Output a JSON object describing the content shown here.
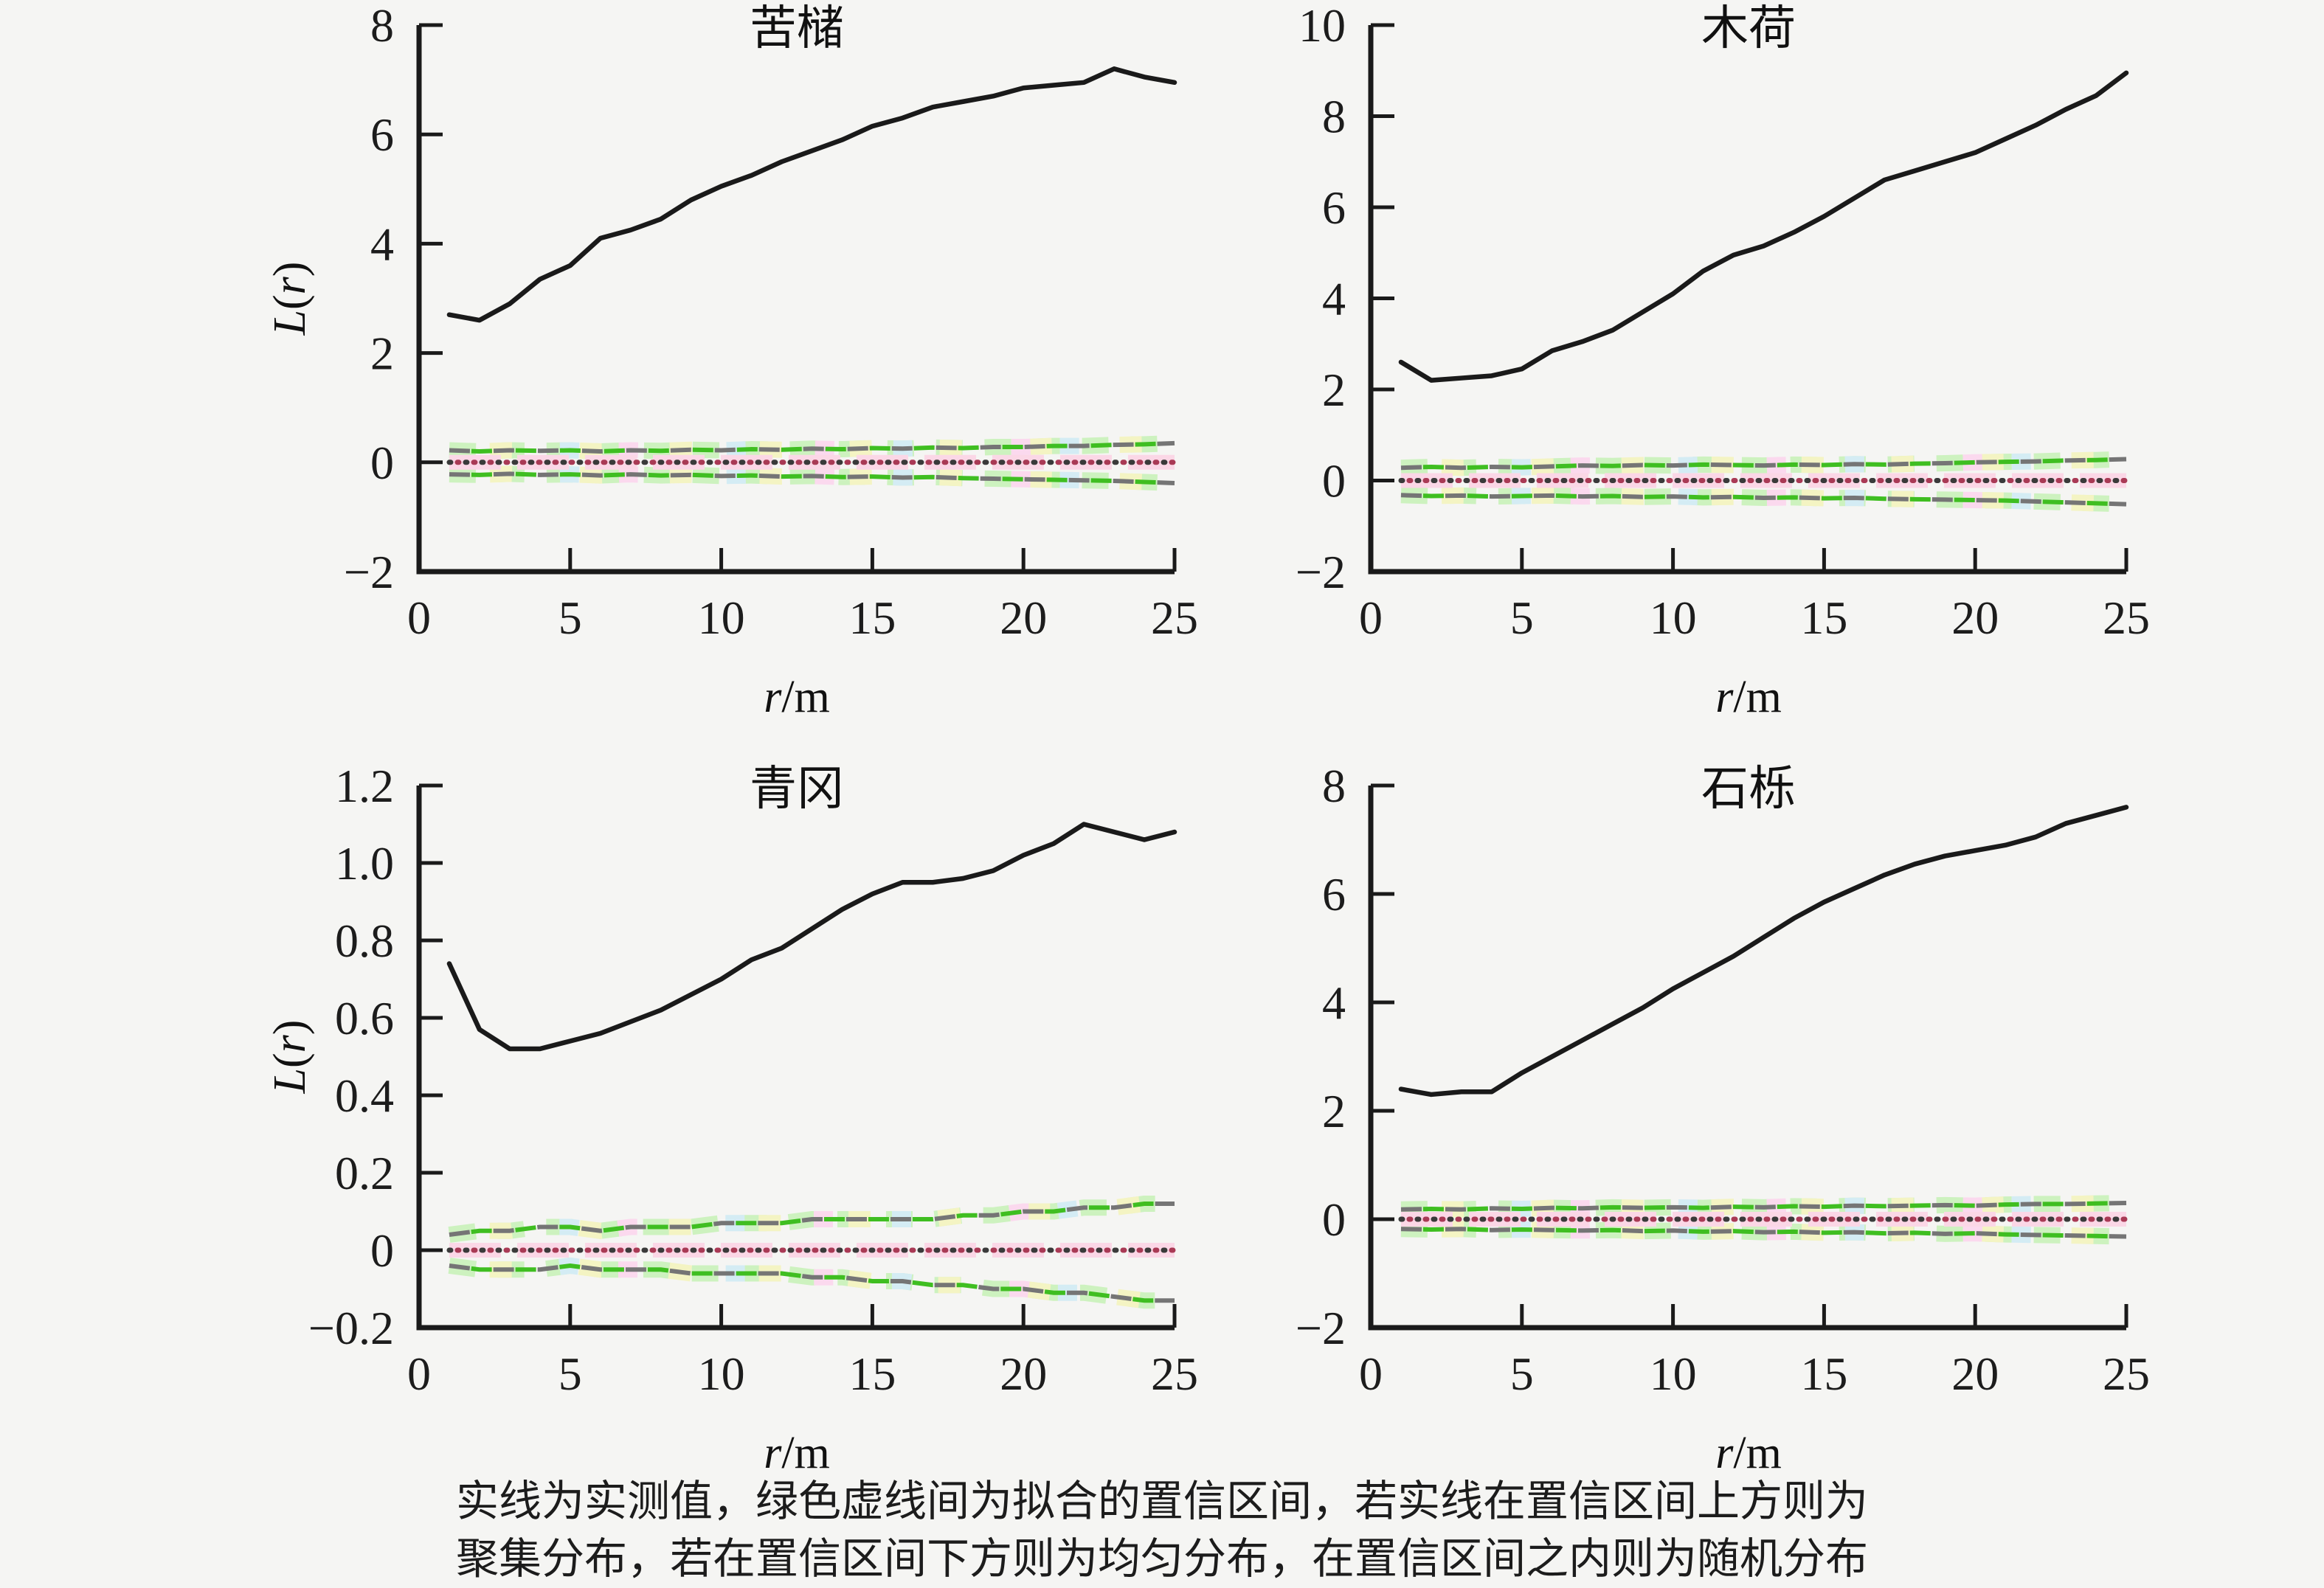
{
  "figure": {
    "caption": {
      "line1": "实线为实测值，绿色虚线间为拟合的置信区间，若实线在置信区间上方则为",
      "line2": "聚集分布，若在置信区间下方则为均匀分布，在置信区间之内则为随机分布"
    }
  },
  "colors": {
    "background": "#f5f5f3",
    "axis": "#1a1a1a",
    "observed_line": "#1a1a1a",
    "envelope_dash_green": "#3fbe21",
    "envelope_dash_gray": "#757575",
    "halo_green": "#cdf2bf",
    "halo_yellow": "#f4f4c3",
    "halo_pink": "#fbd9ee",
    "halo_blue": "#d4ecf4",
    "theoretical_dot_dark": "#3a3a3a",
    "theoretical_dot_red": "#a93a55",
    "theoretical_band_pink": "#fbd7e6",
    "text": "#1c1c1c"
  },
  "chart_data": [
    {
      "type": "line",
      "id": "kuzhu",
      "title": "苦槠",
      "xlabel_parts": [
        {
          "text": "r",
          "italic": true
        },
        {
          "text": "/m",
          "italic": false
        }
      ],
      "ylabel_parts": [
        {
          "text": "L",
          "italic": true
        },
        {
          "text": "(",
          "italic": false
        },
        {
          "text": "r",
          "italic": true
        },
        {
          "text": ")",
          "italic": false
        }
      ],
      "show_ylabel": true,
      "xlim": [
        0,
        25
      ],
      "ylim": [
        -2,
        8
      ],
      "xticks": [
        0,
        5,
        10,
        15,
        20,
        25
      ],
      "xtick_labels": [
        "0",
        "5",
        "10",
        "15",
        "20",
        "25"
      ],
      "yticks": [
        -2,
        0,
        2,
        4,
        6,
        8
      ],
      "ytick_labels": [
        "−2",
        "0",
        "2",
        "4",
        "6",
        "8"
      ],
      "x": [
        1,
        2,
        3,
        4,
        5,
        6,
        7,
        8,
        9,
        10,
        11,
        12,
        13,
        14,
        15,
        16,
        17,
        18,
        19,
        20,
        21,
        22,
        23,
        24,
        25
      ],
      "series": {
        "observed": {
          "values": [
            2.7,
            2.6,
            2.9,
            3.35,
            3.6,
            4.1,
            4.25,
            4.45,
            4.8,
            5.05,
            5.25,
            5.5,
            5.7,
            5.9,
            6.15,
            6.3,
            6.5,
            6.6,
            6.7,
            6.85,
            6.9,
            6.95,
            7.2,
            7.05,
            6.95
          ]
        },
        "envelope_upper": {
          "values": [
            0.22,
            0.2,
            0.22,
            0.21,
            0.22,
            0.2,
            0.22,
            0.21,
            0.23,
            0.22,
            0.24,
            0.23,
            0.25,
            0.24,
            0.26,
            0.25,
            0.27,
            0.26,
            0.28,
            0.28,
            0.3,
            0.3,
            0.32,
            0.33,
            0.35
          ]
        },
        "envelope_lower": {
          "values": [
            -0.22,
            -0.23,
            -0.21,
            -0.23,
            -0.22,
            -0.24,
            -0.22,
            -0.24,
            -0.23,
            -0.25,
            -0.24,
            -0.26,
            -0.25,
            -0.27,
            -0.26,
            -0.28,
            -0.27,
            -0.29,
            -0.3,
            -0.31,
            -0.32,
            -0.33,
            -0.34,
            -0.36,
            -0.38
          ]
        },
        "theoretical": {
          "constant": 0
        }
      }
    },
    {
      "type": "line",
      "id": "muhe",
      "title": "木荷",
      "xlabel_parts": [
        {
          "text": "r",
          "italic": true
        },
        {
          "text": "/m",
          "italic": false
        }
      ],
      "ylabel_parts": [
        {
          "text": "L",
          "italic": true
        },
        {
          "text": "(",
          "italic": false
        },
        {
          "text": "r",
          "italic": true
        },
        {
          "text": ")",
          "italic": false
        }
      ],
      "show_ylabel": false,
      "xlim": [
        0,
        25
      ],
      "ylim": [
        -2,
        10
      ],
      "xticks": [
        0,
        5,
        10,
        15,
        20,
        25
      ],
      "xtick_labels": [
        "0",
        "5",
        "10",
        "15",
        "20",
        "25"
      ],
      "yticks": [
        -2,
        0,
        2,
        4,
        6,
        8,
        10
      ],
      "ytick_labels": [
        "−2",
        "0",
        "2",
        "4",
        "6",
        "8",
        "10"
      ],
      "x": [
        1,
        2,
        3,
        4,
        5,
        6,
        7,
        8,
        9,
        10,
        11,
        12,
        13,
        14,
        15,
        16,
        17,
        18,
        19,
        20,
        21,
        22,
        23,
        24,
        25
      ],
      "series": {
        "observed": {
          "values": [
            2.6,
            2.2,
            2.25,
            2.3,
            2.45,
            2.85,
            3.05,
            3.3,
            3.7,
            4.1,
            4.6,
            4.95,
            5.15,
            5.45,
            5.8,
            6.2,
            6.6,
            6.8,
            7.0,
            7.2,
            7.5,
            7.8,
            8.15,
            8.45,
            8.95
          ]
        },
        "envelope_upper": {
          "values": [
            0.28,
            0.3,
            0.28,
            0.3,
            0.29,
            0.31,
            0.33,
            0.32,
            0.34,
            0.33,
            0.35,
            0.34,
            0.33,
            0.35,
            0.34,
            0.36,
            0.35,
            0.37,
            0.38,
            0.4,
            0.41,
            0.42,
            0.44,
            0.45,
            0.47
          ]
        },
        "envelope_lower": {
          "values": [
            -0.32,
            -0.34,
            -0.33,
            -0.35,
            -0.34,
            -0.33,
            -0.35,
            -0.34,
            -0.36,
            -0.35,
            -0.37,
            -0.36,
            -0.38,
            -0.37,
            -0.39,
            -0.38,
            -0.4,
            -0.41,
            -0.42,
            -0.43,
            -0.44,
            -0.46,
            -0.48,
            -0.5,
            -0.52
          ]
        },
        "theoretical": {
          "constant": 0
        }
      }
    },
    {
      "type": "line",
      "id": "qinggang",
      "title": "青冈",
      "xlabel_parts": [
        {
          "text": "r",
          "italic": true
        },
        {
          "text": "/m",
          "italic": false
        }
      ],
      "ylabel_parts": [
        {
          "text": "L",
          "italic": true
        },
        {
          "text": "(",
          "italic": false
        },
        {
          "text": "r",
          "italic": true
        },
        {
          "text": ")",
          "italic": false
        }
      ],
      "show_ylabel": true,
      "xlim": [
        0,
        25
      ],
      "ylim": [
        -0.2,
        1.2
      ],
      "xticks": [
        0,
        5,
        10,
        15,
        20,
        25
      ],
      "xtick_labels": [
        "0",
        "5",
        "10",
        "15",
        "20",
        "25"
      ],
      "yticks": [
        -0.2,
        0,
        0.2,
        0.4,
        0.6,
        0.8,
        1.0,
        1.2
      ],
      "ytick_labels": [
        "−0.2",
        "0",
        "0.2",
        "0.4",
        "0.6",
        "0.8",
        "1.0",
        "1.2"
      ],
      "x": [
        1,
        2,
        3,
        4,
        5,
        6,
        7,
        8,
        9,
        10,
        11,
        12,
        13,
        14,
        15,
        16,
        17,
        18,
        19,
        20,
        21,
        22,
        23,
        24,
        25
      ],
      "series": {
        "observed": {
          "values": [
            0.74,
            0.57,
            0.52,
            0.52,
            0.54,
            0.56,
            0.59,
            0.62,
            0.66,
            0.7,
            0.75,
            0.78,
            0.83,
            0.88,
            0.92,
            0.95,
            0.95,
            0.96,
            0.98,
            1.02,
            1.05,
            1.1,
            1.08,
            1.06,
            1.08
          ]
        },
        "envelope_upper": {
          "values": [
            0.04,
            0.05,
            0.05,
            0.06,
            0.06,
            0.05,
            0.06,
            0.06,
            0.06,
            0.07,
            0.07,
            0.07,
            0.08,
            0.08,
            0.08,
            0.08,
            0.08,
            0.09,
            0.09,
            0.1,
            0.1,
            0.11,
            0.11,
            0.12,
            0.12
          ]
        },
        "envelope_lower": {
          "values": [
            -0.04,
            -0.05,
            -0.05,
            -0.05,
            -0.04,
            -0.05,
            -0.05,
            -0.05,
            -0.06,
            -0.06,
            -0.06,
            -0.06,
            -0.07,
            -0.07,
            -0.08,
            -0.08,
            -0.09,
            -0.09,
            -0.1,
            -0.1,
            -0.11,
            -0.11,
            -0.12,
            -0.13,
            -0.13
          ]
        },
        "theoretical": {
          "constant": 0
        }
      }
    },
    {
      "type": "line",
      "id": "shili",
      "title": "石栎",
      "xlabel_parts": [
        {
          "text": "r",
          "italic": true
        },
        {
          "text": "/m",
          "italic": false
        }
      ],
      "ylabel_parts": [
        {
          "text": "L",
          "italic": true
        },
        {
          "text": "(",
          "italic": false
        },
        {
          "text": "r",
          "italic": true
        },
        {
          "text": ")",
          "italic": false
        }
      ],
      "show_ylabel": false,
      "xlim": [
        0,
        25
      ],
      "ylim": [
        -2,
        8
      ],
      "xticks": [
        0,
        5,
        10,
        15,
        20,
        25
      ],
      "xtick_labels": [
        "0",
        "5",
        "10",
        "15",
        "20",
        "25"
      ],
      "yticks": [
        -2,
        0,
        2,
        4,
        6,
        8
      ],
      "ytick_labels": [
        "−2",
        "0",
        "2",
        "4",
        "6",
        "8"
      ],
      "x": [
        1,
        2,
        3,
        4,
        5,
        6,
        7,
        8,
        9,
        10,
        11,
        12,
        13,
        14,
        15,
        16,
        17,
        18,
        19,
        20,
        21,
        22,
        23,
        24,
        25
      ],
      "series": {
        "observed": {
          "values": [
            2.4,
            2.3,
            2.35,
            2.35,
            2.7,
            3.0,
            3.3,
            3.6,
            3.9,
            4.25,
            4.55,
            4.85,
            5.2,
            5.55,
            5.85,
            6.1,
            6.35,
            6.55,
            6.7,
            6.8,
            6.9,
            7.05,
            7.3,
            7.45,
            7.6
          ]
        },
        "envelope_upper": {
          "values": [
            0.18,
            0.19,
            0.18,
            0.2,
            0.19,
            0.21,
            0.2,
            0.22,
            0.21,
            0.22,
            0.21,
            0.23,
            0.22,
            0.24,
            0.23,
            0.25,
            0.24,
            0.25,
            0.26,
            0.25,
            0.27,
            0.28,
            0.28,
            0.29,
            0.3
          ]
        },
        "envelope_lower": {
          "values": [
            -0.18,
            -0.19,
            -0.18,
            -0.2,
            -0.19,
            -0.2,
            -0.21,
            -0.2,
            -0.22,
            -0.21,
            -0.23,
            -0.22,
            -0.24,
            -0.23,
            -0.25,
            -0.24,
            -0.26,
            -0.25,
            -0.27,
            -0.26,
            -0.28,
            -0.29,
            -0.3,
            -0.31,
            -0.32
          ]
        },
        "theoretical": {
          "constant": 0
        }
      }
    }
  ]
}
